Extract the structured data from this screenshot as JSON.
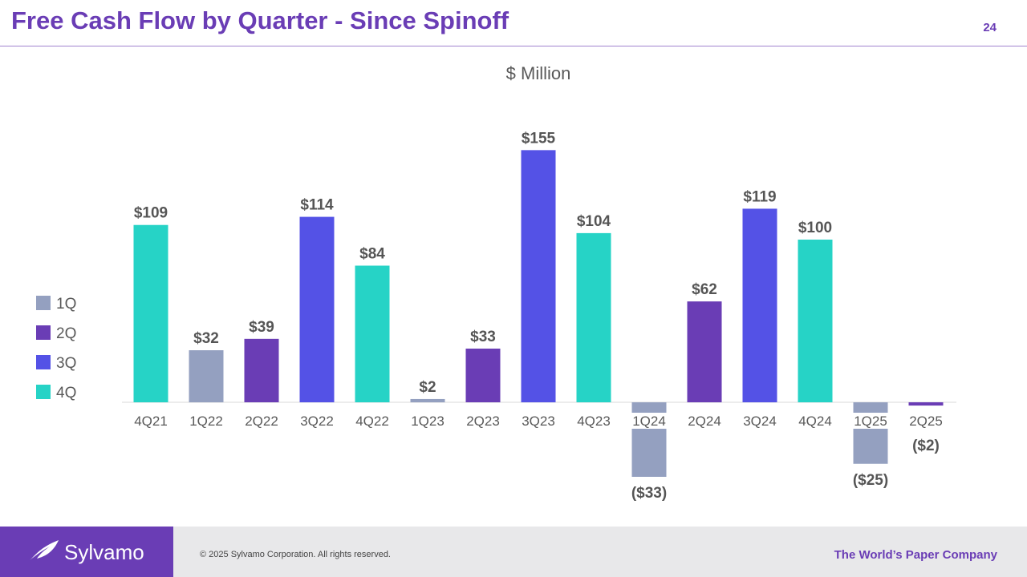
{
  "header": {
    "title": "Free Cash Flow by Quarter - Since Spinoff",
    "page_number": "24"
  },
  "colors": {
    "1Q": "#94a0c0",
    "2Q": "#6a3db5",
    "3Q": "#5452e6",
    "4Q": "#26d3c6",
    "brand": "#6a3db5",
    "label": "#555555",
    "baseline": "#d9d9d9"
  },
  "chart_data": {
    "type": "bar",
    "title": "$ Million",
    "xlabel": "",
    "ylabel": "",
    "ylim": [
      -40,
      160
    ],
    "grid": false,
    "legend_position": "left",
    "categories": [
      "4Q21",
      "1Q22",
      "2Q22",
      "3Q22",
      "4Q22",
      "1Q23",
      "2Q23",
      "3Q23",
      "4Q23",
      "1Q24",
      "2Q24",
      "3Q24",
      "4Q24",
      "1Q25",
      "2Q25"
    ],
    "values": [
      109,
      32,
      39,
      114,
      84,
      2,
      33,
      155,
      104,
      -33,
      62,
      119,
      100,
      -25,
      -2
    ],
    "value_labels": [
      "$109",
      "$32",
      "$39",
      "$114",
      "$84",
      "$2",
      "$33",
      "$155",
      "$104",
      "($33)",
      "$62",
      "$119",
      "$100",
      "($25)",
      "($2)"
    ],
    "quarter_series": [
      "4Q",
      "1Q",
      "2Q",
      "3Q",
      "4Q",
      "1Q",
      "2Q",
      "3Q",
      "4Q",
      "1Q",
      "2Q",
      "3Q",
      "4Q",
      "1Q",
      "2Q"
    ],
    "legend": [
      "1Q",
      "2Q",
      "3Q",
      "4Q"
    ]
  },
  "footer": {
    "brand": "Sylvamo",
    "copyright": "© 2025 Sylvamo Corporation. All rights reserved.",
    "tagline": "The World’s Paper Company"
  }
}
